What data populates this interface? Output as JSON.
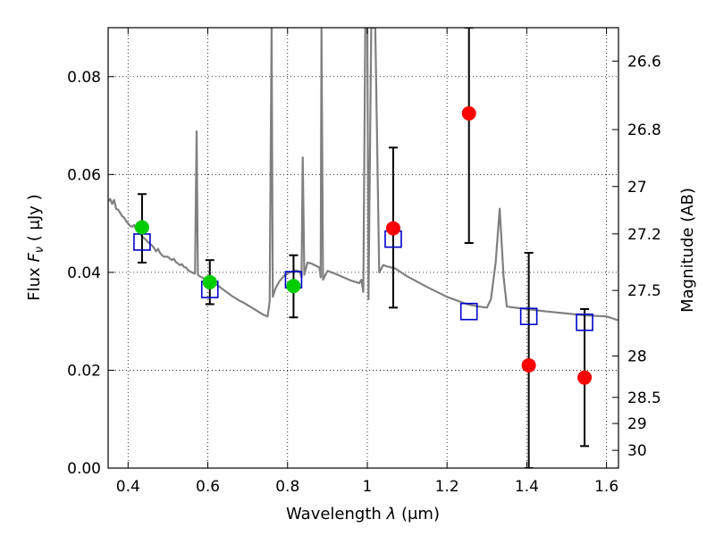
{
  "chart_data": {
    "type": "scatter",
    "xlabel_prefix": "Wavelength",
    "xlabel_symbol": "λ",
    "xlabel_unit": "(μm)",
    "ylabel_prefix": "Flux",
    "ylabel_symbol": "F",
    "ylabel_sub": "ν",
    "ylabel_unit": "( μJy )",
    "y2label": "Magnitude (AB)",
    "xlim": [
      0.35,
      1.63
    ],
    "ylim": [
      0.0,
      0.09
    ],
    "grid": true,
    "x_ticks": [
      0.4,
      0.6,
      0.8,
      1.0,
      1.2,
      1.4,
      1.6
    ],
    "x_tick_labels": [
      "0.4",
      "0.6",
      "0.8",
      "1",
      "1.2",
      "1.4",
      "1.6"
    ],
    "y_ticks": [
      0.0,
      0.02,
      0.04,
      0.06,
      0.08
    ],
    "y_tick_labels": [
      "0.00",
      "0.02",
      "0.04",
      "0.06",
      "0.08"
    ],
    "y2_ticks": [
      {
        "label": "26.6",
        "mag": 26.6
      },
      {
        "label": "26.8",
        "mag": 26.8
      },
      {
        "label": "27",
        "mag": 27.0
      },
      {
        "label": "27.2",
        "mag": 27.2
      },
      {
        "label": "27.5",
        "mag": 27.5
      },
      {
        "label": "28",
        "mag": 28.0
      },
      {
        "label": "28.5",
        "mag": 28.5
      },
      {
        "label": "29",
        "mag": 29.0
      },
      {
        "label": "30",
        "mag": 30.0
      }
    ],
    "model_color": "#808080",
    "model_spectrum": [
      [
        0.35,
        0.0545
      ],
      [
        0.355,
        0.055
      ],
      [
        0.36,
        0.054
      ],
      [
        0.365,
        0.0548
      ],
      [
        0.37,
        0.053
      ],
      [
        0.375,
        0.0528
      ],
      [
        0.38,
        0.0522
      ],
      [
        0.385,
        0.0515
      ],
      [
        0.39,
        0.0512
      ],
      [
        0.395,
        0.0505
      ],
      [
        0.4,
        0.05
      ],
      [
        0.405,
        0.0495
      ],
      [
        0.41,
        0.0493
      ],
      [
        0.415,
        0.0497
      ],
      [
        0.42,
        0.0488
      ],
      [
        0.425,
        0.0483
      ],
      [
        0.43,
        0.0479
      ],
      [
        0.435,
        0.0474
      ],
      [
        0.44,
        0.047
      ],
      [
        0.445,
        0.0466
      ],
      [
        0.45,
        0.0462
      ],
      [
        0.455,
        0.0458
      ],
      [
        0.46,
        0.0455
      ],
      [
        0.465,
        0.045
      ],
      [
        0.47,
        0.0443
      ],
      [
        0.475,
        0.0448
      ],
      [
        0.48,
        0.044
      ],
      [
        0.485,
        0.0435
      ],
      [
        0.49,
        0.0432
      ],
      [
        0.5,
        0.0432
      ],
      [
        0.505,
        0.0428
      ],
      [
        0.51,
        0.0425
      ],
      [
        0.515,
        0.0428
      ],
      [
        0.52,
        0.0421
      ],
      [
        0.525,
        0.0418
      ],
      [
        0.53,
        0.0415
      ],
      [
        0.535,
        0.0417
      ],
      [
        0.54,
        0.0411
      ],
      [
        0.545,
        0.041
      ],
      [
        0.55,
        0.0405
      ],
      [
        0.555,
        0.0402
      ],
      [
        0.56,
        0.04
      ],
      [
        0.565,
        0.0398
      ],
      [
        0.568,
        0.0398
      ],
      [
        0.572,
        0.0688
      ],
      [
        0.575,
        0.0395
      ],
      [
        0.58,
        0.0392
      ],
      [
        0.585,
        0.039
      ],
      [
        0.59,
        0.0387
      ],
      [
        0.6,
        0.0385
      ],
      [
        0.61,
        0.038
      ],
      [
        0.62,
        0.0376
      ],
      [
        0.63,
        0.037
      ],
      [
        0.64,
        0.0364
      ],
      [
        0.65,
        0.0358
      ],
      [
        0.66,
        0.0352
      ],
      [
        0.67,
        0.0347
      ],
      [
        0.68,
        0.0342
      ],
      [
        0.69,
        0.0338
      ],
      [
        0.7,
        0.0333
      ],
      [
        0.71,
        0.0328
      ],
      [
        0.72,
        0.0323
      ],
      [
        0.73,
        0.0318
      ],
      [
        0.74,
        0.0313
      ],
      [
        0.75,
        0.031
      ],
      [
        0.755,
        0.034
      ],
      [
        0.76,
        0.09
      ],
      [
        0.763,
        0.035
      ],
      [
        0.77,
        0.0368
      ],
      [
        0.78,
        0.0382
      ],
      [
        0.79,
        0.0392
      ],
      [
        0.8,
        0.0398
      ],
      [
        0.81,
        0.0401
      ],
      [
        0.82,
        0.0404
      ],
      [
        0.83,
        0.0402
      ],
      [
        0.835,
        0.039
      ],
      [
        0.838,
        0.0635
      ],
      [
        0.842,
        0.0395
      ],
      [
        0.85,
        0.042
      ],
      [
        0.86,
        0.0418
      ],
      [
        0.87,
        0.0414
      ],
      [
        0.88,
        0.041
      ],
      [
        0.883,
        0.039
      ],
      [
        0.885,
        0.09
      ],
      [
        0.889,
        0.0385
      ],
      [
        0.9,
        0.0403
      ],
      [
        0.92,
        0.0397
      ],
      [
        0.94,
        0.039
      ],
      [
        0.96,
        0.0383
      ],
      [
        0.98,
        0.0378
      ],
      [
        0.985,
        0.0385
      ],
      [
        0.99,
        0.036
      ],
      [
        0.995,
        0.09
      ],
      [
        1.0,
        0.09
      ],
      [
        1.003,
        0.0345
      ],
      [
        1.01,
        0.09
      ],
      [
        1.02,
        0.09
      ],
      [
        1.03,
        0.04
      ],
      [
        1.04,
        0.0415
      ],
      [
        1.05,
        0.0412
      ],
      [
        1.07,
        0.0408
      ],
      [
        1.1,
        0.0392
      ],
      [
        1.15,
        0.037
      ],
      [
        1.2,
        0.035
      ],
      [
        1.25,
        0.0335
      ],
      [
        1.28,
        0.033
      ],
      [
        1.3,
        0.0328
      ],
      [
        1.31,
        0.0345
      ],
      [
        1.322,
        0.042
      ],
      [
        1.332,
        0.053
      ],
      [
        1.342,
        0.039
      ],
      [
        1.35,
        0.033
      ],
      [
        1.4,
        0.0325
      ],
      [
        1.45,
        0.032
      ],
      [
        1.5,
        0.0316
      ],
      [
        1.55,
        0.0312
      ],
      [
        1.6,
        0.031
      ],
      [
        1.63,
        0.0302
      ]
    ],
    "model_bandflux": {
      "marker": "open-square",
      "color": "#0000cc",
      "x": [
        0.435,
        0.605,
        0.815,
        1.065,
        1.255,
        1.405,
        1.545
      ],
      "y": [
        0.0462,
        0.0365,
        0.0385,
        0.0468,
        0.032,
        0.031,
        0.0298
      ]
    },
    "detections": {
      "marker": "filled-circle",
      "color": "#00cc00",
      "x": [
        0.435,
        0.605,
        0.815
      ],
      "y": [
        0.0492,
        0.038,
        0.0372
      ],
      "yerr_low": [
        0.042,
        0.0335,
        0.0308
      ],
      "yerr_high": [
        0.056,
        0.0425,
        0.0435
      ]
    },
    "upper_limits": {
      "marker": "filled-circle",
      "color": "#ff0000",
      "x": [
        1.065,
        1.255,
        1.405,
        1.545
      ],
      "y": [
        0.049,
        0.0725,
        0.021,
        0.0185
      ],
      "yerr_low": [
        0.0328,
        0.046,
        0.0,
        0.0045
      ],
      "yerr_high": [
        0.0655,
        0.09,
        0.044,
        0.0325
      ]
    }
  }
}
